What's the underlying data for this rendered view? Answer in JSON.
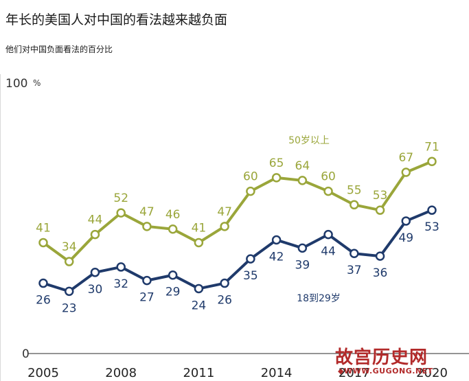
{
  "header": {
    "title": "年长的美国人对中国的看法越来越负面",
    "subtitle": "他们对中国负面看法的百分比"
  },
  "watermark": {
    "brand": "故宫历史网",
    "url": "◆WWW.GUGONG.NET"
  },
  "colors": {
    "older": "#9aa63a",
    "younger": "#1f3a6b",
    "axis": "#555555"
  },
  "chart_data": {
    "type": "line",
    "ylim": [
      0,
      100
    ],
    "y_top_label": "100",
    "y_top_unit": "%",
    "y_bottom_label": "0",
    "xlim": [
      2005,
      2020
    ],
    "x_tick_labels": [
      "2005",
      "2008",
      "2011",
      "2014",
      "2017",
      "2020"
    ],
    "x": [
      2005,
      2006,
      2007,
      2008,
      2009,
      2010,
      2011,
      2012,
      2013,
      2014,
      2015,
      2016,
      2017,
      2018,
      2019,
      2020
    ],
    "series": [
      {
        "name": "50岁以上",
        "color_key": "older",
        "values": [
          41,
          34,
          44,
          52,
          47,
          46,
          41,
          47,
          60,
          65,
          64,
          60,
          55,
          53,
          67,
          71
        ]
      },
      {
        "name": "18到29岁",
        "color_key": "younger",
        "values": [
          26,
          23,
          30,
          32,
          27,
          29,
          24,
          26,
          35,
          42,
          39,
          44,
          37,
          36,
          49,
          53
        ]
      }
    ]
  }
}
